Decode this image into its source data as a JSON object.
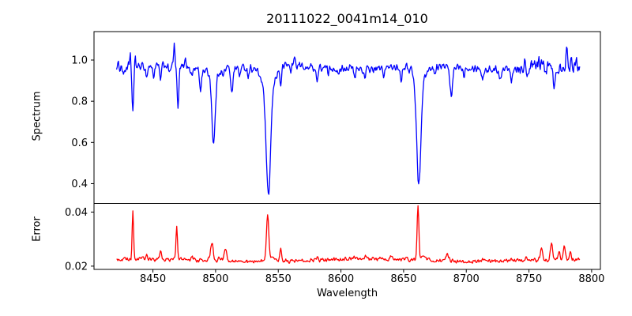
{
  "figure": {
    "title": "20111022_0041m14_010",
    "background": "#ffffff",
    "axes_color": "#000000"
  },
  "chart_data": {
    "type": "line",
    "title": "20111022_0041m14_010",
    "xlabel": "Wavelength",
    "grid": false,
    "legend": "none",
    "xlim": [
      8403,
      8807
    ],
    "x_ticks": [
      8450,
      8500,
      8550,
      8600,
      8650,
      8700,
      8750,
      8800
    ],
    "data_wavelength_range": [
      8421,
      8790.5
    ],
    "sample_step": 0.5,
    "noise_seed": 1234,
    "panels": [
      {
        "name": "spectrum",
        "ylabel": "Spectrum",
        "ylim": [
          0.304,
          1.138
        ],
        "y_ticks": [
          0.4,
          0.6,
          0.8,
          1.0
        ],
        "y_tick_labels": [
          "0.4",
          "0.6",
          "0.8",
          "1.0"
        ],
        "color": "#0000ff",
        "continuum": {
          "base": 0.965,
          "sine": [
            [
              0.008,
              110,
              0
            ],
            [
              0.004,
              47,
              2
            ]
          ]
        },
        "noise_amp": 0.022,
        "noise_scale_regions": [
          [
            8740,
            8795,
            1.8
          ],
          [
            8421,
            8438,
            1.3
          ]
        ],
        "absorption_lines_format": [
          "wavelength",
          "depth",
          "sigma"
        ],
        "absorption_lines": [
          [
            8427,
            0.04,
            0.8
          ],
          [
            8434,
            0.21,
            0.7
          ],
          [
            8445,
            0.05,
            0.7
          ],
          [
            8450.5,
            0.05,
            0.7
          ],
          [
            8456,
            0.07,
            0.7
          ],
          [
            8463,
            0.04,
            0.6
          ],
          [
            8470,
            0.21,
            0.7
          ],
          [
            8481,
            0.04,
            0.7
          ],
          [
            8488,
            0.1,
            0.8
          ],
          [
            8498.4,
            0.33,
            1.3
          ],
          [
            8498.4,
            0.035,
            3.5
          ],
          [
            8506,
            0.04,
            0.7
          ],
          [
            8513,
            0.11,
            0.9
          ],
          [
            8519,
            0.04,
            0.6
          ],
          [
            8526,
            0.04,
            0.6
          ],
          [
            8542.1,
            0.5,
            1.7
          ],
          [
            8542.1,
            0.13,
            4.5
          ],
          [
            8552,
            0.08,
            0.7
          ],
          [
            8560,
            0.03,
            0.6
          ],
          [
            8571,
            0.03,
            0.6
          ],
          [
            8581,
            0.07,
            0.7
          ],
          [
            8590,
            0.03,
            0.6
          ],
          [
            8598,
            0.045,
            0.7
          ],
          [
            8611,
            0.05,
            0.7
          ],
          [
            8619,
            0.05,
            0.7
          ],
          [
            8634,
            0.035,
            0.6
          ],
          [
            8648,
            0.06,
            0.8
          ],
          [
            8662.1,
            0.49,
            1.6
          ],
          [
            8662.1,
            0.09,
            4.5
          ],
          [
            8675,
            0.035,
            0.7
          ],
          [
            8688,
            0.145,
            1.1
          ],
          [
            8698,
            0.04,
            0.7
          ],
          [
            8713,
            0.05,
            0.8
          ],
          [
            8727,
            0.045,
            0.7
          ],
          [
            8736,
            0.05,
            0.7
          ],
          [
            8748,
            0.05,
            0.7
          ],
          [
            8770,
            0.09,
            0.8
          ]
        ],
        "emission_spikes_format": [
          "wavelength",
          "height",
          "sigma"
        ],
        "emission_spikes": [
          [
            8432,
            0.045,
            0.4
          ],
          [
            8436,
            0.05,
            0.4
          ],
          [
            8467,
            0.105,
            0.45
          ],
          [
            8476,
            0.055,
            0.5
          ],
          [
            8563,
            0.04,
            0.5
          ],
          [
            8656,
            0.03,
            0.5
          ],
          [
            8747,
            0.05,
            0.5
          ],
          [
            8758,
            0.04,
            0.5
          ],
          [
            8780,
            0.08,
            0.6
          ],
          [
            8784,
            0.05,
            0.5
          ]
        ]
      },
      {
        "name": "error",
        "ylabel": "Error",
        "ylim": [
          0.0188,
          0.0432
        ],
        "y_ticks": [
          0.02,
          0.04
        ],
        "y_tick_labels": [
          "0.02",
          "0.04"
        ],
        "color": "#ff0000",
        "continuum": {
          "base": 0.0222,
          "sine": [
            [
              0.0004,
              180,
              0.8
            ]
          ]
        },
        "noise_amp": 0.0009,
        "noise_scale_regions": [],
        "absorption_lines_format": [
          "wavelength",
          "depth",
          "sigma"
        ],
        "absorption_lines": [],
        "emission_spikes_format": [
          "wavelength",
          "height",
          "sigma"
        ],
        "emission_spikes": [
          [
            8434,
            0.0185,
            0.55
          ],
          [
            8445,
            0.0012,
            0.7
          ],
          [
            8456,
            0.003,
            0.7
          ],
          [
            8469,
            0.0128,
            0.55
          ],
          [
            8481,
            0.0012,
            0.8
          ],
          [
            8497,
            0.0062,
            1.1
          ],
          [
            8503,
            0.0015,
            1.0
          ],
          [
            8508,
            0.0048,
            0.9
          ],
          [
            8541.5,
            0.0168,
            0.9
          ],
          [
            8546,
            0.0018,
            1.8
          ],
          [
            8552,
            0.0042,
            0.7
          ],
          [
            8581,
            0.0012,
            0.9
          ],
          [
            8611,
            0.001,
            1.0
          ],
          [
            8620,
            0.001,
            1.2
          ],
          [
            8640,
            0.0012,
            1.2
          ],
          [
            8661.5,
            0.0198,
            0.7
          ],
          [
            8666,
            0.0015,
            1.5
          ],
          [
            8685,
            0.0025,
            1.2
          ],
          [
            8713,
            0.0008,
            1.0
          ],
          [
            8736,
            0.0009,
            1.0
          ],
          [
            8748,
            0.001,
            0.9
          ],
          [
            8760,
            0.005,
            0.9
          ],
          [
            8768,
            0.0058,
            0.9
          ],
          [
            8774,
            0.0028,
            0.7
          ],
          [
            8778,
            0.0048,
            0.8
          ],
          [
            8783,
            0.0025,
            0.7
          ]
        ]
      }
    ]
  }
}
